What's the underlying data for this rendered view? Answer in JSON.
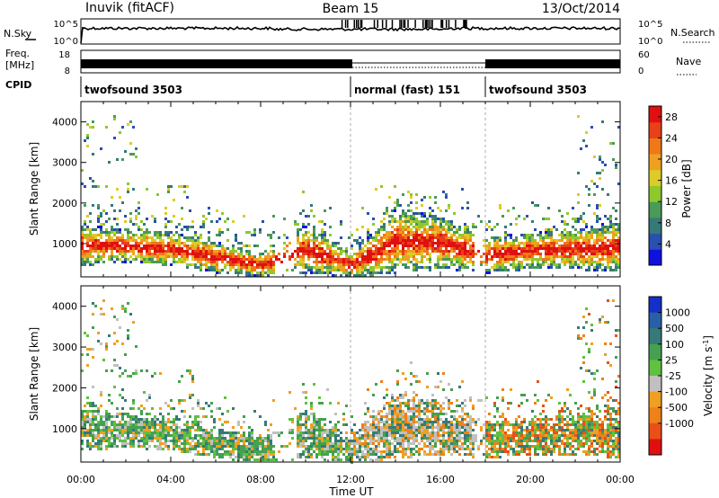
{
  "header": {
    "station": "Inuvik (fitACF)",
    "beam": "Beam 15",
    "date": "13/Oct/2014"
  },
  "top_panels": {
    "nsky_label": "N.Sky",
    "nsky_ticks": [
      "10^5",
      "10^0"
    ],
    "nsearch_label": "N.Search",
    "nsearch_ticks": [
      "10^5",
      "10^0"
    ],
    "freq_label": "Freq.",
    "freq_unit": "[MHz]",
    "freq_ticks": [
      "18",
      "8"
    ],
    "nave_label": "Nave",
    "nave_ticks": [
      "60",
      "0"
    ],
    "cpid_label": "CPID",
    "cpid_segments": [
      {
        "label": "twofsound 3503",
        "start_hour": 0,
        "end_hour": 12
      },
      {
        "label": "normal (fast) 151",
        "start_hour": 12,
        "end_hour": 18
      },
      {
        "label": "twofsound 3503",
        "start_hour": 18,
        "end_hour": 24
      }
    ]
  },
  "chart_data": [
    {
      "type": "heatmap",
      "title": "",
      "xlabel": "Time UT",
      "ylabel": "Slant Range [km]",
      "xlim": [
        0,
        24
      ],
      "ylim": [
        180,
        4500
      ],
      "x_ticks": [
        "00:00",
        "04:00",
        "08:00",
        "12:00",
        "16:00",
        "20:00",
        "00:00"
      ],
      "y_ticks": [
        1000,
        2000,
        3000,
        4000
      ],
      "colorbar": {
        "label": "Power [dB]",
        "ticks": [
          4,
          8,
          12,
          16,
          20,
          24,
          28
        ],
        "range": [
          0,
          30
        ],
        "colors": [
          "#1010e0",
          "#2a4fb0",
          "#357a78",
          "#4a9a58",
          "#8ec82c",
          "#dccc28",
          "#f0a020",
          "#f07818",
          "#e84018",
          "#e01010"
        ]
      },
      "main_echo_band": [
        {
          "hour": 0,
          "min_km": 500,
          "max_km": 1500
        },
        {
          "hour": 2,
          "min_km": 550,
          "max_km": 1400
        },
        {
          "hour": 4,
          "min_km": 500,
          "max_km": 1300
        },
        {
          "hour": 6,
          "min_km": 300,
          "max_km": 1100
        },
        {
          "hour": 8,
          "min_km": 200,
          "max_km": 800
        },
        {
          "hour": 10,
          "min_km": 300,
          "max_km": 1500
        },
        {
          "hour": 12,
          "min_km": 200,
          "max_km": 800
        },
        {
          "hour": 14,
          "min_km": 300,
          "max_km": 1900
        },
        {
          "hour": 16,
          "min_km": 400,
          "max_km": 1700
        },
        {
          "hour": 18,
          "min_km": 300,
          "max_km": 1200
        },
        {
          "hour": 20,
          "min_km": 400,
          "max_km": 1300
        },
        {
          "hour": 22,
          "min_km": 400,
          "max_km": 1400
        },
        {
          "hour": 24,
          "min_km": 300,
          "max_km": 1600
        }
      ]
    },
    {
      "type": "heatmap",
      "title": "",
      "xlabel": "Time UT",
      "ylabel": "Slant Range [km]",
      "xlim": [
        0,
        24
      ],
      "ylim": [
        180,
        4500
      ],
      "x_ticks": [
        "00:00",
        "04:00",
        "08:00",
        "12:00",
        "16:00",
        "20:00",
        "00:00"
      ],
      "y_ticks": [
        1000,
        2000,
        3000,
        4000
      ],
      "colorbar": {
        "label": "Velocity [m s^-1]",
        "tick_labels": [
          "1000",
          "500",
          "100",
          "25",
          "-25",
          "-100",
          "-500",
          "-1000"
        ],
        "colors": [
          "#1530c8",
          "#2860a8",
          "#357a78",
          "#45a050",
          "#60c040",
          "#c0c0c0",
          "#f0a020",
          "#f08018",
          "#e85018",
          "#e01010"
        ]
      },
      "main_echo_band": [
        {
          "hour": 0,
          "min_km": 500,
          "max_km": 1500
        },
        {
          "hour": 2,
          "min_km": 550,
          "max_km": 1400
        },
        {
          "hour": 4,
          "min_km": 500,
          "max_km": 1300
        },
        {
          "hour": 6,
          "min_km": 300,
          "max_km": 1100
        },
        {
          "hour": 8,
          "min_km": 200,
          "max_km": 800
        },
        {
          "hour": 10,
          "min_km": 300,
          "max_km": 1500
        },
        {
          "hour": 12,
          "min_km": 200,
          "max_km": 800
        },
        {
          "hour": 14,
          "min_km": 300,
          "max_km": 1900
        },
        {
          "hour": 16,
          "min_km": 400,
          "max_km": 1700
        },
        {
          "hour": 18,
          "min_km": 300,
          "max_km": 1200
        },
        {
          "hour": 20,
          "min_km": 400,
          "max_km": 1300
        },
        {
          "hour": 22,
          "min_km": 400,
          "max_km": 1400
        },
        {
          "hour": 24,
          "min_km": 300,
          "max_km": 1600
        }
      ]
    }
  ]
}
